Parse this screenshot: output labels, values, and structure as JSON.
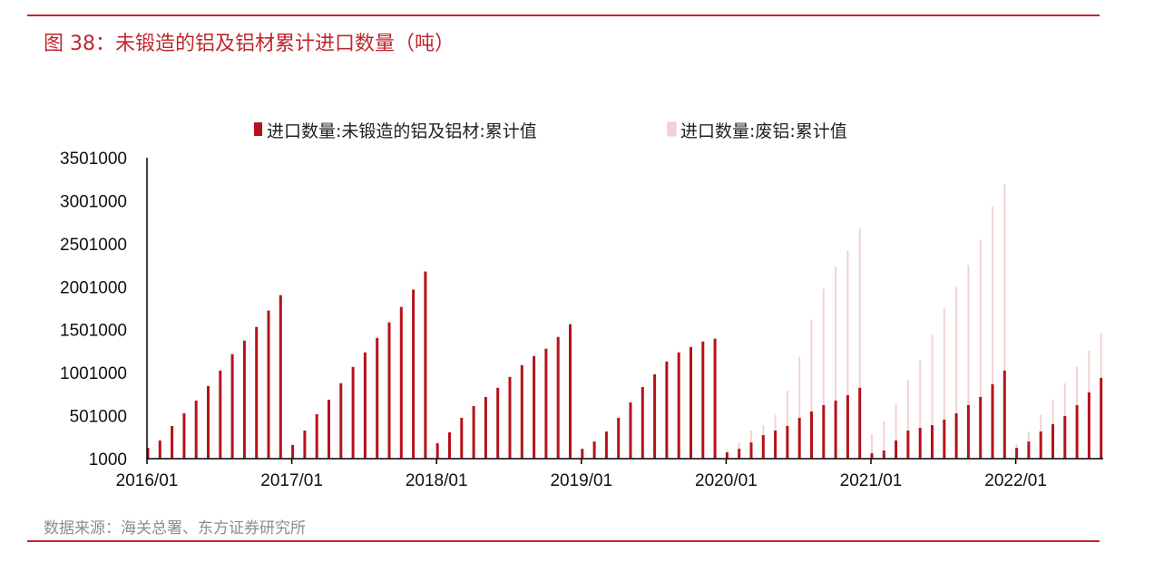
{
  "title": "图 38：未锻造的铝及铝材累计进口数量（吨）",
  "source": "数据来源：海关总署、东方证券研究所",
  "colors": {
    "primary": "#b5121b",
    "secondary": "#f2d3d3",
    "title": "#c0262d"
  },
  "chart_data": {
    "type": "bar",
    "title": "图 38：未锻造的铝及铝材累计进口数量（吨）",
    "xlabel": "",
    "ylabel": "",
    "ylim": [
      1000,
      3501000
    ],
    "yticks": [
      "3501000",
      "3001000",
      "2501000",
      "2001000",
      "1501000",
      "1001000",
      "501000",
      "1000"
    ],
    "xticks": [
      "2016/01",
      "2017/01",
      "2018/01",
      "2019/01",
      "2020/01",
      "2021/01",
      "2022/01"
    ],
    "start": "2016/01",
    "grid": false,
    "legend_position": "top",
    "series": [
      {
        "name": "进口数量:未锻造的铝及铝材:累计值",
        "values": [
          127000,
          212000,
          381000,
          530000,
          677000,
          846000,
          1026000,
          1216000,
          1375000,
          1533000,
          1724000,
          1903000,
          160000,
          328000,
          518000,
          687000,
          878000,
          1068000,
          1237000,
          1406000,
          1586000,
          1766000,
          1967000,
          2178000,
          180000,
          307000,
          476000,
          613000,
          719000,
          825000,
          952000,
          1089000,
          1195000,
          1280000,
          1417000,
          1565000,
          116000,
          201000,
          317000,
          476000,
          656000,
          835000,
          983000,
          1131000,
          1237000,
          1300000,
          1364000,
          1396000,
          74000,
          116000,
          190000,
          275000,
          328000,
          381000,
          476000,
          550000,
          624000,
          677000,
          740000,
          825000,
          64000,
          96000,
          212000,
          328000,
          360000,
          391000,
          455000,
          529000,
          624000,
          719000,
          867000,
          1026000,
          127000,
          201000,
          317000,
          402000,
          497000,
          624000,
          772000,
          941000
        ]
      },
      {
        "name": "进口数量:废铝:累计值",
        "values": [
          null,
          null,
          null,
          null,
          null,
          null,
          null,
          null,
          null,
          null,
          null,
          null,
          null,
          null,
          null,
          null,
          null,
          null,
          null,
          null,
          null,
          null,
          null,
          null,
          null,
          null,
          null,
          null,
          null,
          null,
          null,
          null,
          null,
          null,
          null,
          null,
          null,
          null,
          null,
          null,
          null,
          null,
          null,
          null,
          null,
          null,
          null,
          null,
          110000,
          190000,
          330000,
          391000,
          508000,
          793000,
          1184000,
          1618000,
          1977000,
          2231000,
          2422000,
          2676000,
          286000,
          434000,
          635000,
          920000,
          1142000,
          1449000,
          1755000,
          1999000,
          2253000,
          2549000,
          2930000,
          3194000,
          169000,
          317000,
          508000,
          687000,
          878000,
          1068000,
          1258000,
          1459000
        ]
      }
    ]
  }
}
